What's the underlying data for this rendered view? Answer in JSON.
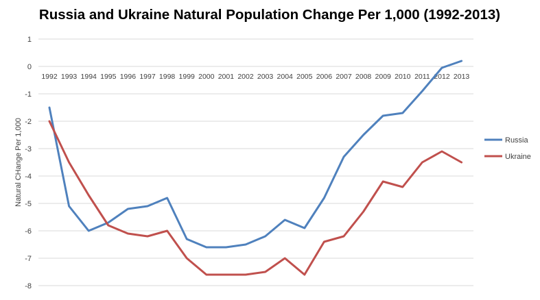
{
  "chart_data": {
    "type": "line",
    "title": "Russia and Ukraine Natural Population Change Per 1,000 (1992-2013)",
    "xlabel": "",
    "ylabel": "Natural CHange Per 1,000",
    "categories": [
      "1992",
      "1993",
      "1994",
      "1995",
      "1996",
      "1997",
      "1998",
      "1999",
      "2000",
      "2001",
      "2002",
      "2003",
      "2004",
      "2005",
      "2006",
      "2007",
      "2008",
      "2009",
      "2010",
      "2011",
      "2012",
      "2013"
    ],
    "ylim": [
      -8,
      1
    ],
    "yticks": [
      "1",
      "0",
      "-1",
      "-2",
      "-3",
      "-4",
      "-5",
      "-6",
      "-7",
      "-8"
    ],
    "grid": true,
    "legend_position": "right",
    "series": [
      {
        "name": "Russia",
        "color": "#4f81bd",
        "values": [
          -1.5,
          -5.1,
          -6.0,
          -5.7,
          -5.2,
          -5.1,
          -4.8,
          -6.3,
          -6.6,
          -6.6,
          -6.5,
          -6.2,
          -5.6,
          -5.9,
          -4.8,
          -3.3,
          -2.5,
          -1.8,
          -1.7,
          -0.9,
          -0.05,
          0.2
        ]
      },
      {
        "name": "Ukraine",
        "color": "#c0504d",
        "values": [
          -2.0,
          -3.5,
          -4.7,
          -5.8,
          -6.1,
          -6.2,
          -6.0,
          -7.0,
          -7.6,
          -7.6,
          -7.6,
          -7.5,
          -7.0,
          -7.6,
          -6.4,
          -6.2,
          -5.3,
          -4.2,
          -4.4,
          -3.5,
          -3.1,
          -3.5
        ]
      }
    ]
  }
}
